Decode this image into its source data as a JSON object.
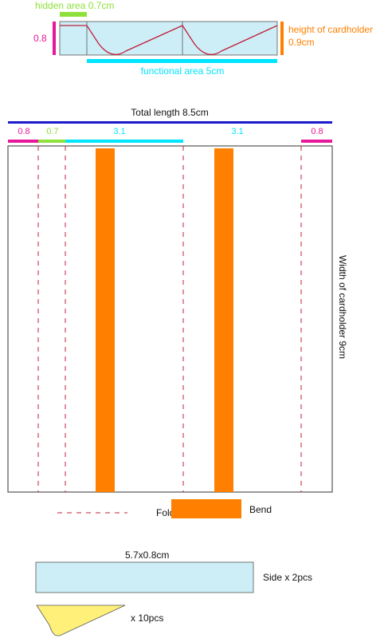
{
  "colors": {
    "green": "#8ee03a",
    "magenta": "#e6199a",
    "orange": "#ff8000",
    "cyan": "#00e5ff",
    "blue": "#1a1acc",
    "red_line": "#c0203a",
    "panel_fill": "#cdeef7",
    "triangle_fill": "#fff07a",
    "outline": "#555555",
    "text": "#111111"
  },
  "top_section": {
    "hidden_label": "hidden area 0.7cm",
    "left_dim": "0.8",
    "height_label_line1": "height of cardholder",
    "height_label_line2": "0.9cm",
    "functional_label": "functional area 5cm"
  },
  "main_section": {
    "total_label": "Total length 8.5cm",
    "seg_08_left": "0.8",
    "seg_07": "0.7",
    "seg_31_a": "3.1",
    "seg_31_b": "3.1",
    "seg_08_right": "0.8",
    "width_label": "Width of cardholder 9cm"
  },
  "legend": {
    "fold_label": "Fold",
    "bend_label": "Bend"
  },
  "parts": {
    "side_dim": "5.7x0.8cm",
    "side_label": "Side x 2pcs",
    "triangle_label": "x 10pcs"
  }
}
